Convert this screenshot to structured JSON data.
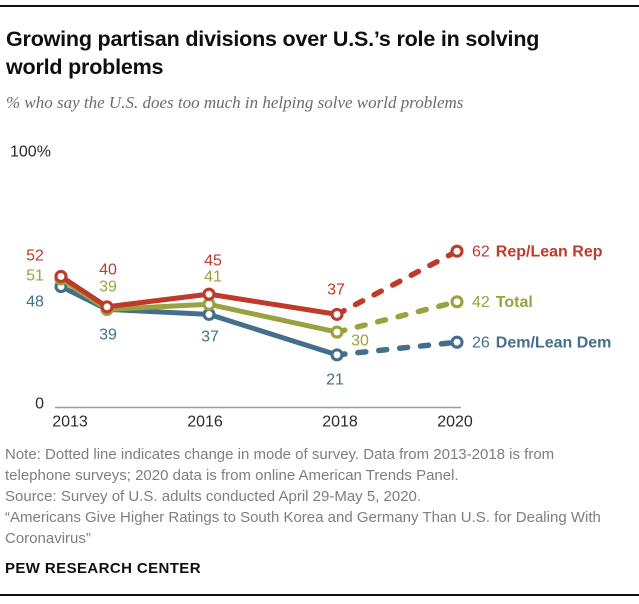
{
  "page": {
    "title": "Growing partisan divisions over U.S.’s role in solving\nworld problems",
    "subtitle": "% who say the U.S. does too much in helping solve world problems"
  },
  "chart_data": {
    "type": "line",
    "x": [
      "2013",
      "2014",
      "2016",
      "2018",
      "2020"
    ],
    "x_axis_ticks": [
      "2013",
      "2016",
      "2018",
      "2020"
    ],
    "y_axis": {
      "min": 0,
      "max": 100,
      "top_label": "100%",
      "bottom_label": "0"
    },
    "grid": "off",
    "legend": "end-of-line labels",
    "style_note": "segment from 2018 to 2020 is dashed to indicate change in survey mode",
    "series": [
      {
        "name": "Rep/Lean Rep",
        "color": "#bf3a2b",
        "values": [
          52,
          40,
          45,
          37,
          62
        ]
      },
      {
        "name": "Total",
        "color": "#99a23f",
        "values": [
          51,
          39,
          41,
          30,
          42
        ]
      },
      {
        "name": "Dem/Lean Dem",
        "color": "#436f8a",
        "values": [
          48,
          39,
          37,
          21,
          26
        ]
      }
    ]
  },
  "footer": {
    "note": "Note: Dotted line indicates change in mode of survey. Data from 2013-2018 is from\ntelephone surveys; 2020 data is from online American Trends Panel.",
    "source": "Source: Survey of U.S. adults conducted April 29-May 5, 2020.",
    "quote": "“Americans Give Higher Ratings to South Korea and Germany Than U.S. for Dealing With\nCoronavirus”",
    "branding": "PEW RESEARCH CENTER"
  }
}
